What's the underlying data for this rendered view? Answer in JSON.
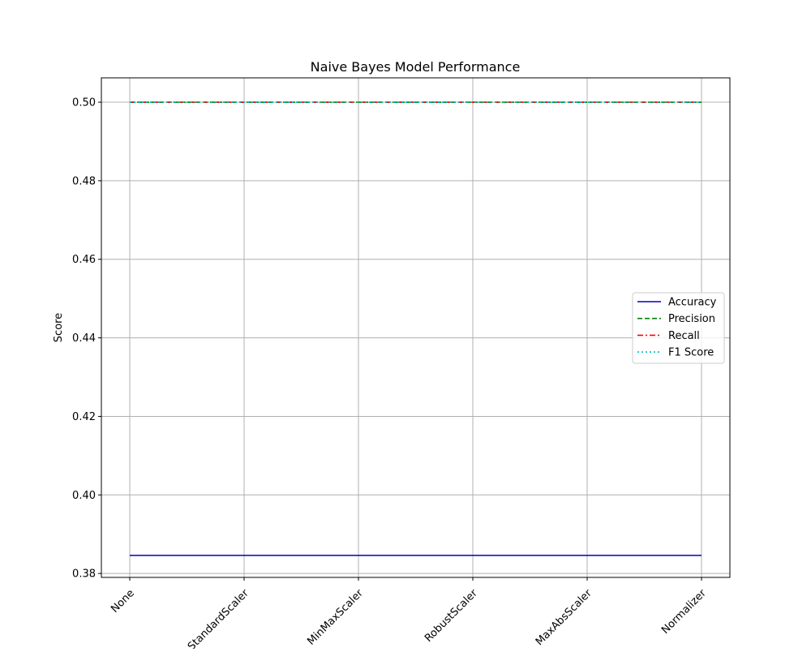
{
  "chart_data": {
    "type": "line",
    "title": "Naive Bayes Model Performance",
    "xlabel": "",
    "ylabel": "Score",
    "categories": [
      "None",
      "StandardScaler",
      "MinMaxScaler",
      "RobustScaler",
      "MaxAbsScaler",
      "Normalizer"
    ],
    "ylim": [
      0.379,
      0.5062
    ],
    "yticks": [
      "0.38",
      "0.40",
      "0.42",
      "0.44",
      "0.46",
      "0.48",
      "0.50"
    ],
    "grid": true,
    "legend_position": "center-right",
    "series": [
      {
        "name": "Accuracy",
        "values": [
          0.3846,
          0.3846,
          0.3846,
          0.3846,
          0.3846,
          0.3846
        ],
        "color": "#0000bf",
        "style": "solid"
      },
      {
        "name": "Precision",
        "values": [
          0.5,
          0.5,
          0.5,
          0.5,
          0.5,
          0.5
        ],
        "color": "#008000",
        "style": "dashed"
      },
      {
        "name": "Recall",
        "values": [
          0.5,
          0.5,
          0.5,
          0.5,
          0.5,
          0.5
        ],
        "color": "#ff0000",
        "style": "dashdot"
      },
      {
        "name": "F1 Score",
        "values": [
          0.5,
          0.5,
          0.5,
          0.5,
          0.5,
          0.5
        ],
        "color": "#00bfbf",
        "style": "dotted"
      }
    ]
  }
}
